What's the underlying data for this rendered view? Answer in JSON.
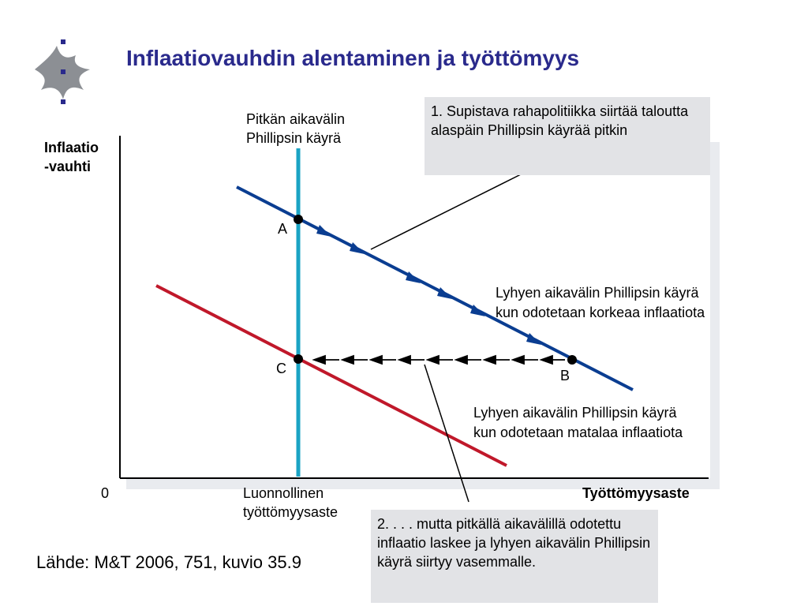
{
  "slide": {
    "title": "Inflaatiovauhdin alentaminen ja työttömyys",
    "source": "Lähde: M&T 2006, 751, kuvio 35.9"
  },
  "axes": {
    "y_label_line1": "Inflaatio",
    "y_label_line2": "-vauhti",
    "x_label": "Työttömyysaste",
    "origin": "0",
    "natural_rate_line1": "Luonnollinen",
    "natural_rate_line2": "työttömyysaste"
  },
  "curves": {
    "long_run_line1": "Pitkän aikavälin",
    "long_run_line2": "Phillipsin käyrä",
    "short_high_line1": "Lyhyen aikavälin Phillipsin käyrä",
    "short_high_line2": "kun odotetaan korkeaa inflaatiota",
    "short_low_line1": "Lyhyen aikavälin Phillipsin käyrä",
    "short_low_line2": "kun odotetaan matalaa inflaatiota"
  },
  "points": {
    "a": "A",
    "b": "B",
    "c": "C"
  },
  "callouts": {
    "one": "1. Supistava rahapolitiikka siirtää taloutta alaspäin Phillipsin käyrää pitkin",
    "two": "2. . . . mutta pitkällä aikavälillä odotettu inflaatio laskee ja lyhyen aikavälin Phillipsin käyrä siirtyy vasemmalle."
  },
  "colors": {
    "title": "#2a2a8c",
    "high_curve": "#0a3d91",
    "low_curve": "#c0182a",
    "long_run": "#1aa3c4",
    "callout_bg": "#e2e3e6"
  }
}
